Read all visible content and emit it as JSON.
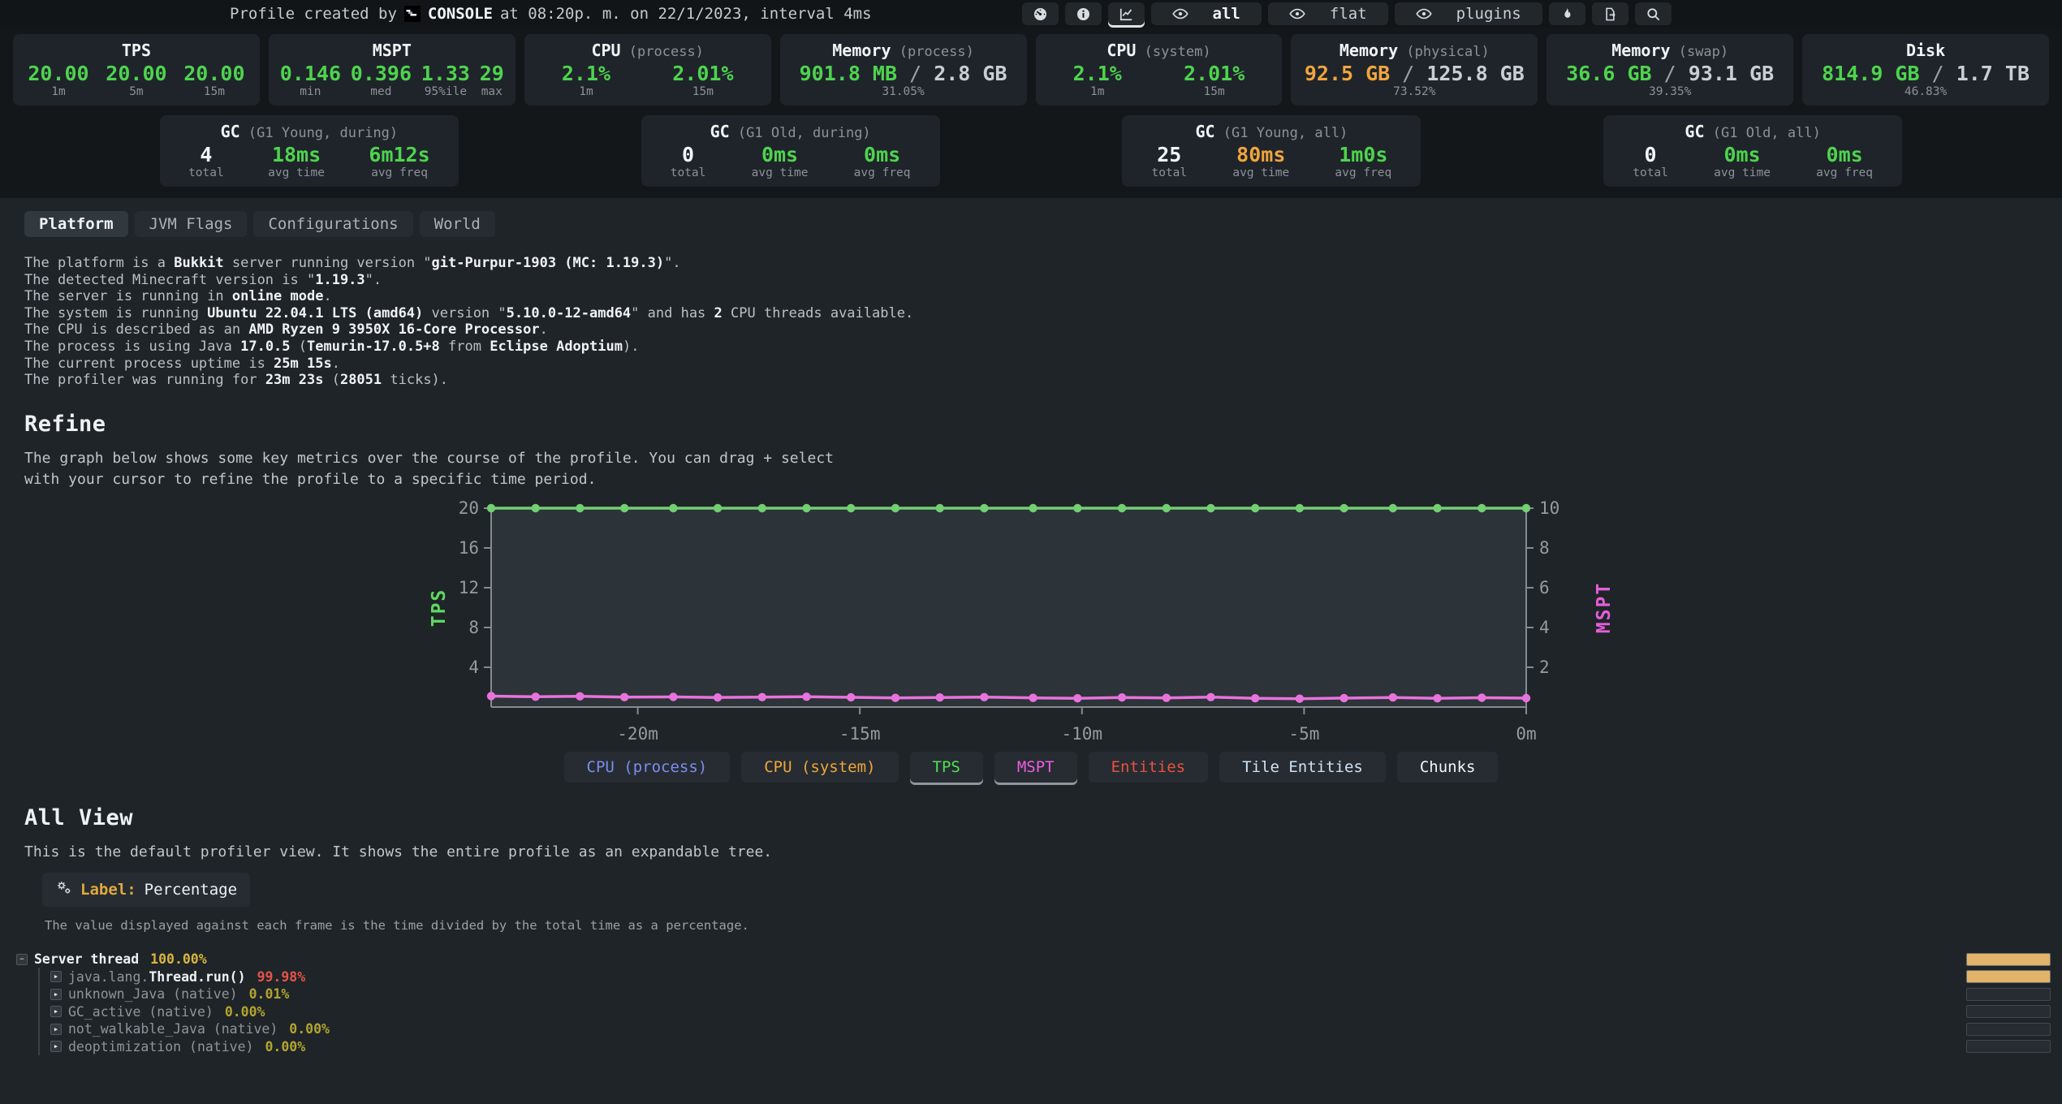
{
  "colors": {
    "green": "#4ed44e",
    "orange": "#f0a53c",
    "white": "#f2f5f7",
    "red": "#e5544a",
    "gold": "#d8b63f",
    "olive": "#b3a52f",
    "magenta": "#ef5ce4",
    "blue": "#7d8cf0",
    "pale_blue": "#cfe2f4",
    "bar_fill": "#e2b368"
  },
  "header": {
    "title_prefix": "Profile created by",
    "user": "CONSOLE",
    "title_suffix": "at 08:20p. m. on 22/1/2023, interval 4ms",
    "toolbar": [
      {
        "name": "metadata-gauge-button",
        "icon": "gauge",
        "active": false
      },
      {
        "name": "info-button",
        "icon": "info",
        "active": false
      },
      {
        "name": "graph-toggle-button",
        "icon": "graph",
        "active": true
      },
      {
        "name": "view-all-button",
        "icon": "eye",
        "label": "all",
        "label_bold": true,
        "active": false
      },
      {
        "name": "view-flat-button",
        "icon": "eye",
        "label": "flat",
        "label_bold": false,
        "active": false
      },
      {
        "name": "view-plugins-button",
        "icon": "eye",
        "label": "plugins",
        "label_bold": false,
        "active": false
      },
      {
        "name": "flame-view-button",
        "icon": "flame",
        "active": false
      },
      {
        "name": "export-button",
        "icon": "export",
        "active": false
      },
      {
        "name": "search-button",
        "icon": "search",
        "active": false
      }
    ]
  },
  "stats": [
    {
      "title": "TPS",
      "qualifier": "",
      "values": [
        {
          "v": "20.00",
          "caption": "1m",
          "color": "green"
        },
        {
          "v": "20.00",
          "caption": "5m",
          "color": "green"
        },
        {
          "v": "20.00",
          "caption": "15m",
          "color": "green"
        }
      ]
    },
    {
      "title": "MSPT",
      "qualifier": "",
      "values": [
        {
          "v": "0.146",
          "caption": "min",
          "color": "green"
        },
        {
          "v": "0.396",
          "caption": "med",
          "color": "green"
        },
        {
          "v": "1.33",
          "caption": "95%ile",
          "color": "green"
        },
        {
          "v": "29",
          "caption": "max",
          "color": "green"
        }
      ]
    },
    {
      "title": "CPU",
      "qualifier": "(process)",
      "values": [
        {
          "v": "2.1%",
          "caption": "1m",
          "color": "green"
        },
        {
          "v": "2.01%",
          "caption": "15m",
          "color": "green"
        }
      ]
    },
    {
      "title": "Memory",
      "qualifier": "(process)",
      "fraction": {
        "used": "901.8 MB",
        "color": "green",
        "total": "2.8 GB",
        "pct": "31.05%"
      }
    },
    {
      "title": "CPU",
      "qualifier": "(system)",
      "values": [
        {
          "v": "2.1%",
          "caption": "1m",
          "color": "green"
        },
        {
          "v": "2.01%",
          "caption": "15m",
          "color": "green"
        }
      ]
    },
    {
      "title": "Memory",
      "qualifier": "(physical)",
      "fraction": {
        "used": "92.5 GB",
        "color": "orange",
        "total": "125.8 GB",
        "pct": "73.52%"
      }
    },
    {
      "title": "Memory",
      "qualifier": "(swap)",
      "fraction": {
        "used": "36.6 GB",
        "color": "green",
        "total": "93.1 GB",
        "pct": "39.35%"
      }
    },
    {
      "title": "Disk",
      "qualifier": "",
      "fraction": {
        "used": "814.9 GB",
        "color": "green",
        "total": "1.7 TB",
        "pct": "46.83%"
      }
    }
  ],
  "gc": [
    {
      "title": "GC",
      "qualifier": "(G1 Young, during)",
      "values": [
        {
          "v": "4",
          "caption": "total",
          "color": "white"
        },
        {
          "v": "18ms",
          "caption": "avg time",
          "color": "green"
        },
        {
          "v": "6m12s",
          "caption": "avg freq",
          "color": "green"
        }
      ]
    },
    {
      "title": "GC",
      "qualifier": "(G1 Old, during)",
      "values": [
        {
          "v": "0",
          "caption": "total",
          "color": "white"
        },
        {
          "v": "0ms",
          "caption": "avg time",
          "color": "green"
        },
        {
          "v": "0ms",
          "caption": "avg freq",
          "color": "green"
        }
      ]
    },
    {
      "title": "GC",
      "qualifier": "(G1 Young, all)",
      "values": [
        {
          "v": "25",
          "caption": "total",
          "color": "white"
        },
        {
          "v": "80ms",
          "caption": "avg time",
          "color": "orange"
        },
        {
          "v": "1m0s",
          "caption": "avg freq",
          "color": "green"
        }
      ]
    },
    {
      "title": "GC",
      "qualifier": "(G1 Old, all)",
      "values": [
        {
          "v": "0",
          "caption": "total",
          "color": "white"
        },
        {
          "v": "0ms",
          "caption": "avg time",
          "color": "green"
        },
        {
          "v": "0ms",
          "caption": "avg freq",
          "color": "green"
        }
      ]
    }
  ],
  "tabs": [
    {
      "label": "Platform",
      "active": true
    },
    {
      "label": "JVM Flags",
      "active": false
    },
    {
      "label": "Configurations",
      "active": false
    },
    {
      "label": "World",
      "active": false
    }
  ],
  "platform_lines": [
    [
      {
        "t": "The platform is a "
      },
      {
        "t": "Bukkit",
        "b": true
      },
      {
        "t": " server running version \""
      },
      {
        "t": "git-Purpur-1903 (MC: 1.19.3)",
        "b": true
      },
      {
        "t": "\"."
      }
    ],
    [
      {
        "t": "The detected Minecraft version is \""
      },
      {
        "t": "1.19.3",
        "b": true
      },
      {
        "t": "\"."
      }
    ],
    [
      {
        "t": "The server is running in "
      },
      {
        "t": "online mode",
        "b": true
      },
      {
        "t": "."
      }
    ],
    [
      {
        "t": "The system is running "
      },
      {
        "t": "Ubuntu 22.04.1 LTS (amd64)",
        "b": true
      },
      {
        "t": " version \""
      },
      {
        "t": "5.10.0-12-amd64",
        "b": true
      },
      {
        "t": "\" and has "
      },
      {
        "t": "2",
        "b": true
      },
      {
        "t": " CPU threads available."
      }
    ],
    [
      {
        "t": "The CPU is described as an "
      },
      {
        "t": "AMD Ryzen 9 3950X 16-Core Processor",
        "b": true
      },
      {
        "t": "."
      }
    ],
    [
      {
        "t": "The process is using Java "
      },
      {
        "t": "17.0.5",
        "b": true
      },
      {
        "t": " ("
      },
      {
        "t": "Temurin-17.0.5+8",
        "b": true
      },
      {
        "t": " from "
      },
      {
        "t": "Eclipse Adoptium",
        "b": true
      },
      {
        "t": ")."
      }
    ],
    [
      {
        "t": "The current process uptime is "
      },
      {
        "t": "25m 15s",
        "b": true
      },
      {
        "t": "."
      }
    ],
    [
      {
        "t": "The profiler was running for "
      },
      {
        "t": "23m 23s",
        "b": true
      },
      {
        "t": " ("
      },
      {
        "t": "28051",
        "b": true
      },
      {
        "t": " ticks)."
      }
    ]
  ],
  "refine": {
    "heading": "Refine",
    "description": "The graph below shows some key metrics over the course of the profile. You can drag + select with your cursor to refine the profile to a specific time period."
  },
  "chart_data": {
    "type": "line",
    "title": "",
    "grid": false,
    "legend_position": "bottom",
    "x_axis": {
      "ticks": [
        "-20m",
        "-15m",
        "-10m",
        "-5m",
        "0m"
      ],
      "range_minutes": [
        -23.3,
        0
      ]
    },
    "left_axis": {
      "label": "TPS",
      "color": "#5fd75f",
      "ticks": [
        20,
        16,
        12,
        8,
        4
      ],
      "range": [
        0,
        20
      ]
    },
    "right_axis": {
      "label": "MSPT",
      "color": "#e35fd9",
      "ticks": [
        10,
        8,
        6,
        4,
        2
      ],
      "range": [
        0,
        10
      ]
    },
    "x": [
      -23.3,
      -22.3,
      -21.3,
      -20.3,
      -19.2,
      -18.2,
      -17.2,
      -16.2,
      -15.2,
      -14.2,
      -13.2,
      -12.2,
      -11.1,
      -10.1,
      -9.1,
      -8.1,
      -7.1,
      -6.1,
      -5.1,
      -4.1,
      -3.0,
      -2.0,
      -1.0,
      0
    ],
    "series": [
      {
        "name": "TPS",
        "axis": "left",
        "color": "#72cf72",
        "values": [
          20,
          20,
          20,
          20,
          20,
          20,
          20,
          20,
          20,
          20,
          20,
          20,
          20,
          20,
          20,
          20,
          20,
          20,
          20,
          20,
          20,
          20,
          20,
          20
        ]
      },
      {
        "name": "MSPT",
        "axis": "right",
        "color": "#e873dc",
        "values": [
          0.55,
          0.52,
          0.54,
          0.5,
          0.51,
          0.48,
          0.5,
          0.52,
          0.49,
          0.46,
          0.48,
          0.5,
          0.46,
          0.44,
          0.48,
          0.46,
          0.5,
          0.44,
          0.42,
          0.45,
          0.48,
          0.44,
          0.47,
          0.45
        ]
      }
    ]
  },
  "legend": [
    {
      "label": "CPU (process)",
      "color": "#7d8cf0",
      "active": false
    },
    {
      "label": "CPU (system)",
      "color": "#f0a53c",
      "active": false
    },
    {
      "label": "TPS",
      "color": "#53e053",
      "active": true
    },
    {
      "label": "MSPT",
      "color": "#ef5ce4",
      "active": true
    },
    {
      "label": "Entities",
      "color": "#ea5142",
      "active": false
    },
    {
      "label": "Tile Entities",
      "color": "#cfe2f4",
      "active": false
    },
    {
      "label": "Chunks",
      "color": "#f2f5f7",
      "active": false
    }
  ],
  "allview": {
    "heading": "All View",
    "description": "This is the default profiler view. It shows the entire profile as an expandable tree.",
    "label_title": "Label:",
    "label_value": "Percentage",
    "note": "The value displayed against each frame is the time divided by the total time as a percentage."
  },
  "tree": [
    {
      "depth": 0,
      "icon": "minus",
      "prefix": "",
      "name": "Server thread",
      "name_bold": true,
      "pct": "100.00%",
      "pct_color": "#d8b63f",
      "bar": 1
    },
    {
      "depth": 1,
      "icon": "arrow",
      "prefix": "java.lang.",
      "name": "Thread.run()",
      "name_bold": true,
      "pct": "99.98%",
      "pct_color": "#e5544a",
      "bar": 0.9998
    },
    {
      "depth": 1,
      "icon": "arrow",
      "prefix": "",
      "name": "unknown_Java (native)",
      "name_bold": false,
      "pct": "0.01%",
      "pct_color": "#b3a52f",
      "bar": 0
    },
    {
      "depth": 1,
      "icon": "arrow",
      "prefix": "",
      "name": "GC_active (native)",
      "name_bold": false,
      "pct": "0.00%",
      "pct_color": "#b3a52f",
      "bar": 0
    },
    {
      "depth": 1,
      "icon": "arrow",
      "prefix": "",
      "name": "not_walkable_Java (native)",
      "name_bold": false,
      "pct": "0.00%",
      "pct_color": "#b3a52f",
      "bar": 0
    },
    {
      "depth": 1,
      "icon": "arrow",
      "prefix": "",
      "name": "deoptimization (native)",
      "name_bold": false,
      "pct": "0.00%",
      "pct_color": "#b3a52f",
      "bar": 0
    }
  ]
}
